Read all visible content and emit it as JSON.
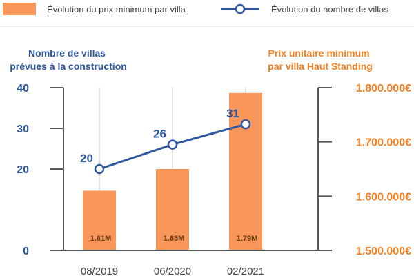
{
  "legend": {
    "bar_label": "Évolution du prix minimum par villa",
    "line_label": "Évolution du nombre de villas"
  },
  "colors": {
    "bar": "#f9965a",
    "line": "#2e57a0",
    "left_axis": "#2e57a0",
    "right_axis": "#f47f20",
    "axis_line": "#555555",
    "grid": "#d9d9d9"
  },
  "chart_data": {
    "type": "bar",
    "categories": [
      "08/2019",
      "06/2020",
      "02/2021"
    ],
    "ylabel_left": [
      "Nombre de villas",
      "prévues à la construction"
    ],
    "ylabel_right": [
      "Prix unitaire minimum",
      "par villa Haut Standing"
    ],
    "ylim_left": [
      0,
      40
    ],
    "ylim_right": [
      1500000,
      1800000
    ],
    "yticks_left": [
      {
        "value": 0,
        "label": "0"
      },
      {
        "value": 20,
        "label": "20"
      },
      {
        "value": 30,
        "label": "30"
      },
      {
        "value": 40,
        "label": "40"
      }
    ],
    "yticks_right": [
      {
        "value": 1500000,
        "label": "1.500.000€"
      },
      {
        "value": 1600000,
        "label": "1.600.000€"
      },
      {
        "value": 1700000,
        "label": "1.700.000€"
      },
      {
        "value": 1800000,
        "label": "1.800.000€"
      }
    ],
    "series": [
      {
        "type": "bar",
        "axis": "right",
        "name": "Évolution du prix minimum par villa",
        "values": [
          1610000,
          1650000,
          1790000
        ],
        "labels": [
          "1.61M",
          "1.65M",
          "1.79M"
        ]
      },
      {
        "type": "line",
        "axis": "left",
        "name": "Évolution du nombre de villas",
        "values": [
          20,
          26,
          31
        ],
        "labels": [
          "20",
          "26",
          "31"
        ]
      }
    ],
    "grid": "vertical lines at categories",
    "legend_position": "top"
  }
}
